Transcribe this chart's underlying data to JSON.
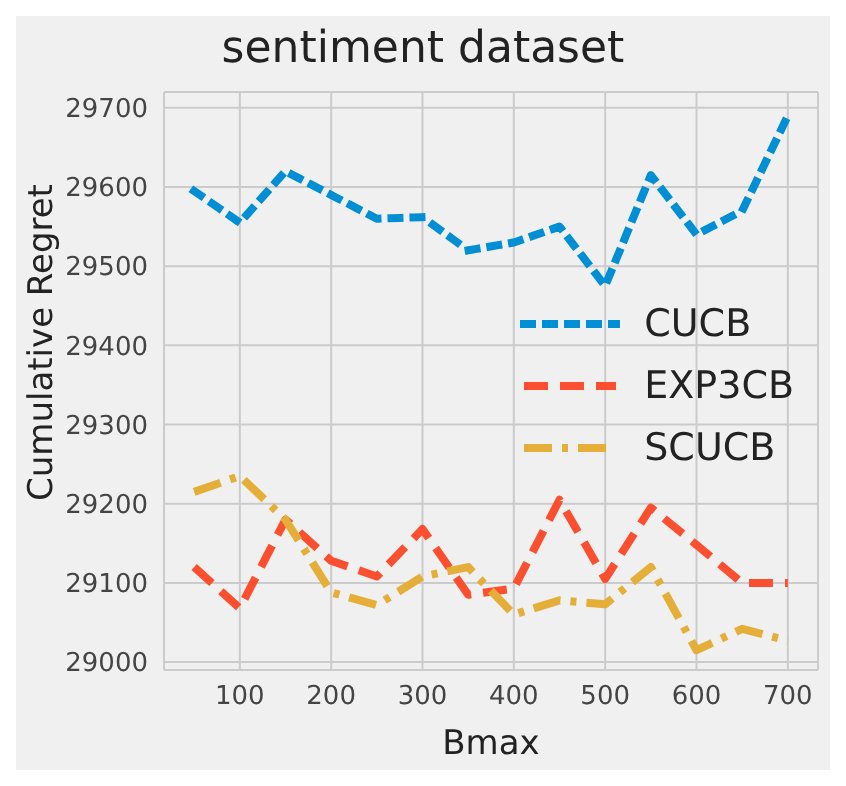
{
  "chart_data": {
    "type": "line",
    "title": "sentiment dataset",
    "xlabel": "Bmax",
    "ylabel": "Cumulative Regret",
    "x": [
      50,
      100,
      150,
      200,
      250,
      300,
      350,
      400,
      450,
      500,
      550,
      600,
      650,
      700
    ],
    "series": [
      {
        "name": "CUCB",
        "color": "#008fd5",
        "line_style": "dotted",
        "values": [
          29595,
          29555,
          29620,
          29590,
          29560,
          29562,
          29520,
          29530,
          29550,
          29475,
          29615,
          29540,
          29570,
          29690
        ]
      },
      {
        "name": "EXP3CB",
        "color": "#fc4f30",
        "line_style": "dashed",
        "values": [
          29120,
          29068,
          29180,
          29128,
          29108,
          29168,
          29085,
          29093,
          29205,
          29105,
          29195,
          29148,
          29100,
          29100
        ]
      },
      {
        "name": "SCUCB",
        "color": "#e5ae38",
        "line_style": "dashdot",
        "values": [
          29215,
          29235,
          29180,
          29088,
          29072,
          29108,
          29120,
          29060,
          29078,
          29073,
          29120,
          29015,
          29042,
          29027
        ]
      }
    ],
    "xlim": [
      17,
      733
    ],
    "xticks": [
      100,
      200,
      300,
      400,
      500,
      600,
      700
    ],
    "ylim": [
      28990,
      29720
    ],
    "yticks": [
      29000,
      29100,
      29200,
      29300,
      29400,
      29500,
      29600,
      29700
    ],
    "grid": true,
    "legend": "right",
    "marker": "none"
  }
}
